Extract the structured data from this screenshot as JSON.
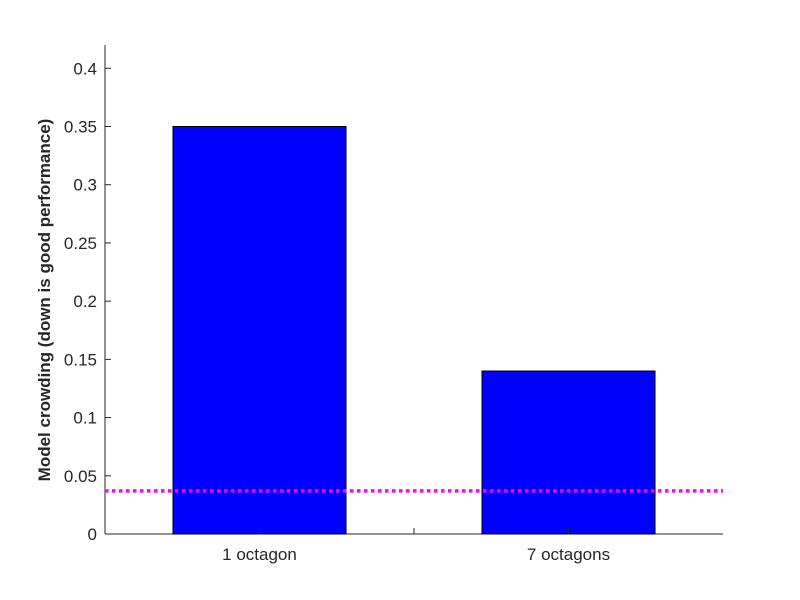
{
  "chart_data": {
    "type": "bar",
    "title": "",
    "xlabel": "",
    "ylabel": "Model crowding (down is good performance)",
    "categories": [
      "1 octagon",
      "7 octagons"
    ],
    "values": [
      0.35,
      0.14
    ],
    "ylim": [
      0,
      0.42
    ],
    "yticks": [
      0,
      0.05,
      0.1,
      0.15,
      0.2,
      0.25,
      0.3,
      0.35,
      0.4
    ],
    "ytick_labels": [
      "0",
      "0.05",
      "0.1",
      "0.15",
      "0.2",
      "0.25",
      "0.3",
      "0.35",
      "0.4"
    ],
    "bar_color": "#0000FF",
    "reference_line": {
      "value": 0.037,
      "color": "#FF00FF",
      "style": "dotted"
    },
    "grid": false,
    "legend": "none"
  }
}
